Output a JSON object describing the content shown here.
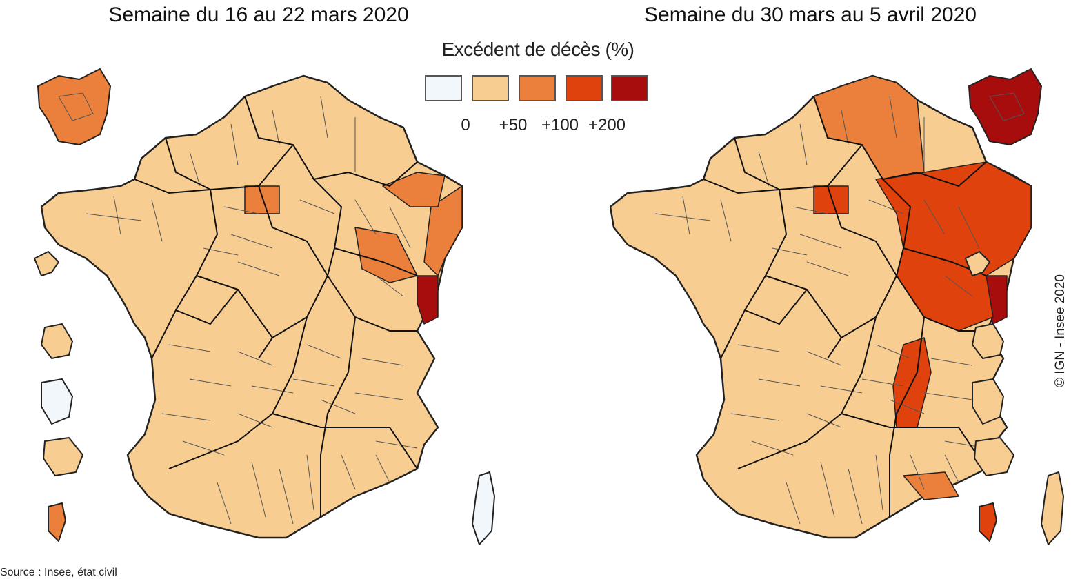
{
  "titles": {
    "left": "Semaine du 16 au 22 mars 2020",
    "right": "Semaine du 30 mars au 5 avril 2020"
  },
  "legend": {
    "title": "Excédent de décès (%)",
    "classes": [
      {
        "color": "#f2f7fb",
        "tick": "0"
      },
      {
        "color": "#f8cd92",
        "tick": "+50"
      },
      {
        "color": "#eb7f3c",
        "tick": "+100"
      },
      {
        "color": "#e0420e",
        "tick": "+200"
      },
      {
        "color": "#a70d0d",
        "tick": ""
      }
    ]
  },
  "credit": "© IGN - Insee 2020",
  "source": "Source : Insee, état civil",
  "maps": {
    "left": {
      "ile_de_france": 2,
      "corse": 0,
      "guadeloupe": 1,
      "martinique": 1,
      "guyane": 0,
      "reunion": 1,
      "mayotte": 2,
      "hotspots": [
        {
          "region": "Haut-Rhin",
          "class": 4
        },
        {
          "region": "Bas-Rhin",
          "class": 2
        },
        {
          "region": "Moselle",
          "class": 2
        },
        {
          "region": "Vosges",
          "class": 2
        },
        {
          "region": "Oise",
          "class": 2
        }
      ]
    },
    "right": {
      "ile_de_france": 4,
      "corse": 1,
      "guadeloupe": 1,
      "martinique": 1,
      "guyane": 1,
      "reunion": 1,
      "mayotte": 3,
      "hotspots": [
        {
          "region": "Haut-Rhin",
          "class": 4
        },
        {
          "region": "Grand Est",
          "class": 3
        },
        {
          "region": "Oise",
          "class": 3
        },
        {
          "region": "Hauts-de-France",
          "class": 2
        },
        {
          "region": "Bourgogne-Franche-Comté",
          "class": 3
        },
        {
          "region": "Rhône",
          "class": 3
        },
        {
          "region": "Bouches-du-Rhône",
          "class": 2
        }
      ]
    }
  }
}
